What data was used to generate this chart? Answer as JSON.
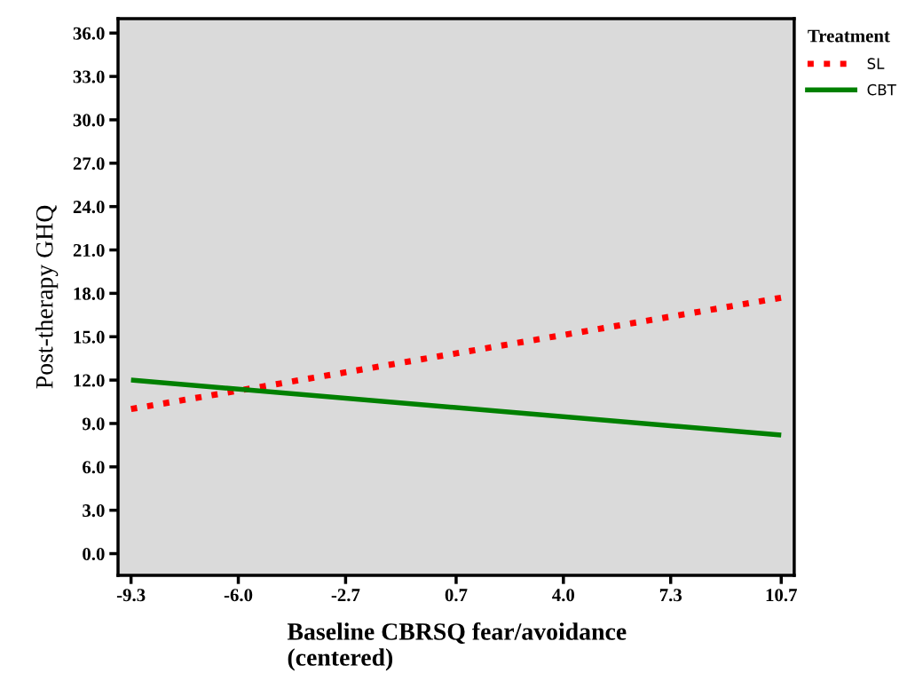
{
  "chart_data": {
    "type": "line",
    "xlabel": "Baseline CBRSQ fear/avoidance\n(centered)",
    "ylabel": "Post-therapy GHQ",
    "legend_title": "Treatment",
    "x": [
      -9.3,
      10.7
    ],
    "series": [
      {
        "name": "SL",
        "color": "#ff0000",
        "values": [
          10.0,
          17.7
        ],
        "line_style": "dotted"
      },
      {
        "name": "CBT",
        "color": "#008000",
        "values": [
          12.0,
          8.2
        ],
        "line_style": "solid"
      }
    ],
    "xlim": [
      -9.7,
      11.1
    ],
    "ylim": [
      -1.5,
      37.0
    ],
    "xticks": [
      {
        "value": -9.3,
        "label": "-9.3"
      },
      {
        "value": -6.0,
        "label": "-6.0"
      },
      {
        "value": -2.7,
        "label": "-2.7"
      },
      {
        "value": 0.7,
        "label": "0.7"
      },
      {
        "value": 4.0,
        "label": "4.0"
      },
      {
        "value": 7.3,
        "label": "7.3"
      },
      {
        "value": 10.7,
        "label": "10.7"
      }
    ],
    "yticks": [
      {
        "value": 0,
        "label": "0.0"
      },
      {
        "value": 3,
        "label": "3.0"
      },
      {
        "value": 6,
        "label": "6.0"
      },
      {
        "value": 9,
        "label": "9.0"
      },
      {
        "value": 12,
        "label": "12.0"
      },
      {
        "value": 15,
        "label": "15.0"
      },
      {
        "value": 18,
        "label": "18.0"
      },
      {
        "value": 21,
        "label": "21.0"
      },
      {
        "value": 24,
        "label": "24.0"
      },
      {
        "value": 27,
        "label": "27.0"
      },
      {
        "value": 30,
        "label": "30.0"
      },
      {
        "value": 33,
        "label": "33.0"
      },
      {
        "value": 36,
        "label": "36.0"
      }
    ],
    "grid": false,
    "legend": "top right"
  }
}
